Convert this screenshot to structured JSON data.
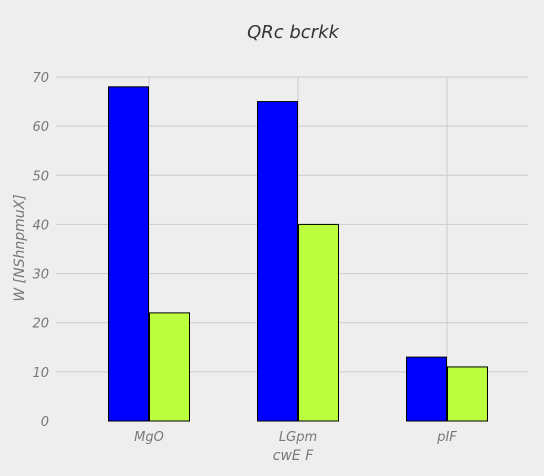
{
  "chart_data": {
    "type": "bar",
    "title": "QRc bcrkk",
    "xlabel": "cwE F",
    "ylabel": "W [NShnpmuX]",
    "categories": [
      "MgO",
      "LGpm",
      "pIF"
    ],
    "series": [
      {
        "values": [
          68,
          65,
          13
        ],
        "color": "#0000ff"
      },
      {
        "values": [
          22,
          40,
          11
        ],
        "color": "#bbff3f"
      }
    ],
    "ylim": [
      0,
      70
    ],
    "yticks": [
      0,
      10,
      20,
      30,
      40,
      50,
      60,
      70
    ],
    "grid": true,
    "legend": "none"
  },
  "colors": {
    "background": "#eeeeee",
    "grid": "#cccccc",
    "text": "#777777",
    "title": "#333333"
  }
}
